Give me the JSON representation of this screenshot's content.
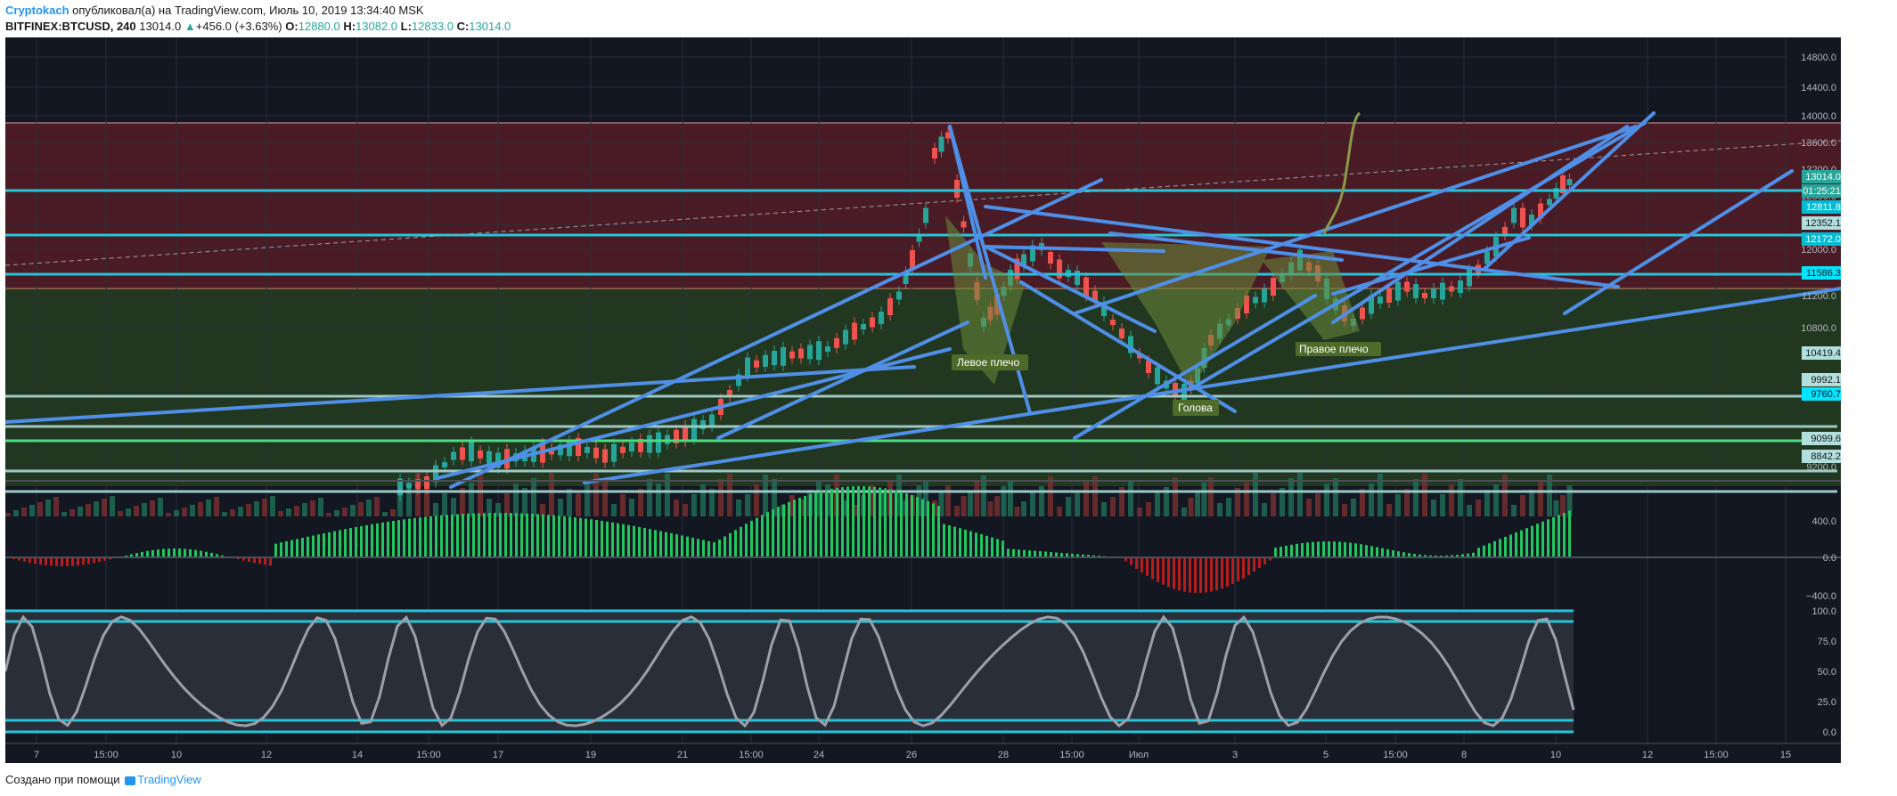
{
  "header": {
    "author": "Cryptokach",
    "published_text": "опубликовал(а) на TradingView.com, Июль 10, 2019 13:34:40 MSK",
    "symbol": "BITFINEX:BTCUSD, 240",
    "last": "13014.0",
    "change": "+456.0 (+3.63%)",
    "o_label": "O:",
    "o_value": "12880.0",
    "h_label": "H:",
    "h_value": "13082.0",
    "l_label": "L:",
    "l_value": "12833.0",
    "c_label": "C:",
    "c_value": "13014.0"
  },
  "price_axis": [
    "14800.0",
    "14400.0",
    "14000.0",
    "13600.0",
    "13200.0",
    "12800.0",
    "12400.0",
    "12000.0",
    "11200.0",
    "10800.0",
    "9600.0",
    "9200.0"
  ],
  "price_tags": [
    {
      "text": "13014.0",
      "bg": "#26a69a",
      "fg": "#ffffff"
    },
    {
      "text": "01:25:21",
      "bg": "#26a69a",
      "fg": "#ffffff"
    },
    {
      "text": "12811.8",
      "bg": "#00bcd4",
      "fg": "#ffffff"
    },
    {
      "text": "12352.1",
      "bg": "#b2dfdb",
      "fg": "#131722"
    },
    {
      "text": "12172.0",
      "bg": "#00bcd4",
      "fg": "#ffffff"
    },
    {
      "text": "11586.3",
      "bg": "#00e5ff",
      "fg": "#131722"
    },
    {
      "text": "10419.4",
      "bg": "#b2dfdb",
      "fg": "#131722"
    },
    {
      "text": "9992.1",
      "bg": "#b2dfdb",
      "fg": "#131722"
    },
    {
      "text": "9760.7",
      "bg": "#00e5ff",
      "fg": "#131722"
    },
    {
      "text": "9099.6",
      "bg": "#b2dfdb",
      "fg": "#131722"
    },
    {
      "text": "8842.2",
      "bg": "#b2dfdb",
      "fg": "#131722"
    }
  ],
  "macd_axis": [
    "400.0",
    "0.0",
    "−400.0"
  ],
  "stoch_axis": [
    "100.0",
    "75.0",
    "50.0",
    "25.0",
    "0.0"
  ],
  "time_axis": [
    "7",
    "15:00",
    "10",
    "12",
    "14",
    "15:00",
    "17",
    "19",
    "21",
    "15:00",
    "24",
    "26",
    "28",
    "15:00",
    "Июл",
    "3",
    "5",
    "15:00",
    "8",
    "10",
    "12",
    "15:00",
    "15"
  ],
  "pattern_labels": {
    "left_shoulder": "Левое плечо",
    "head": "Голова",
    "right_shoulder": "Правое плечо"
  },
  "footer": {
    "created_with": "Создано при помощи",
    "brand": "TradingView"
  },
  "colors": {
    "bg": "#131722",
    "up": "#26a69a",
    "down": "#ef5350",
    "trend": "#4f8fe8",
    "level": "#26c6da"
  }
}
